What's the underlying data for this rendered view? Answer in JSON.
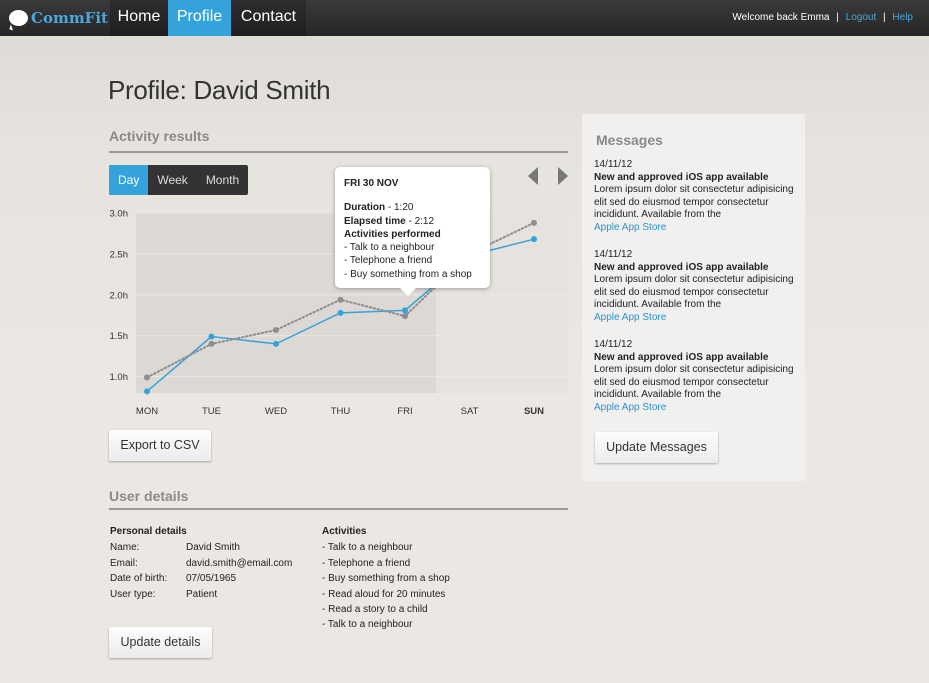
{
  "nav": {
    "logo": "CommFit",
    "tabs": [
      {
        "label": "Home"
      },
      {
        "label": "Profile"
      },
      {
        "label": "Contact"
      }
    ],
    "welcome": "Welcome back Emma",
    "logout": "Logout",
    "help": "Help",
    "separator": "|"
  },
  "page": {
    "title": "Profile: David Smith"
  },
  "activity": {
    "title": "Activity results",
    "segments": [
      "Day",
      "Week",
      "Month"
    ],
    "export_label": "Export to CSV"
  },
  "tooltip": {
    "date": "FRI 30 NOV",
    "duration_label": "Duration",
    "duration_value": " - 1:20",
    "elapsed_label": "Elapsed time",
    "elapsed_value": " - 2:12",
    "activities_label": "Activities performed",
    "activities": [
      "- Talk to a neighbour",
      "- Telephone a friend",
      "- Buy something from a shop"
    ]
  },
  "chart_data": {
    "type": "line",
    "categories": [
      "MON",
      "TUE",
      "WED",
      "THU",
      "FRI",
      "SAT",
      "SUN"
    ],
    "y_ticks": [
      "1.0h",
      "1.5h",
      "2.0h",
      "2.5h",
      "3.0h"
    ],
    "ylim": [
      0.8,
      3.0
    ],
    "grid": true,
    "series": [
      {
        "style": "solid",
        "color": "#34a3dc",
        "values": [
          0.82,
          1.49,
          1.4,
          1.78,
          1.81,
          2.48,
          2.68
        ]
      },
      {
        "style": "dotted",
        "color": "#8e8e8e",
        "values": [
          0.99,
          1.4,
          1.57,
          1.94,
          1.74,
          2.5,
          2.88
        ]
      }
    ],
    "bold_category": "SUN"
  },
  "user": {
    "title": "User details",
    "personal_heading": "Personal details",
    "fields": [
      {
        "label": "Name:",
        "value": "David Smith"
      },
      {
        "label": "Email:",
        "value": "david.smith@email.com"
      },
      {
        "label": "Date of birth:",
        "value": "07/05/1965"
      },
      {
        "label": "User type:",
        "value": "Patient"
      }
    ],
    "activities_heading": "Activities",
    "activities": [
      "- Talk to a neighbour",
      "- Telephone a friend",
      "- Buy something from a shop",
      "- Read aloud for 20 minutes",
      "- Read a story to a child",
      "- Talk to a neighbour"
    ],
    "update_label": "Update details"
  },
  "messages": {
    "title": "Messages",
    "items": [
      {
        "date": "14/11/12",
        "title": "New and approved iOS app available",
        "body": "Lorem ipsum dolor sit consectetur adipisicing elit sed do eiusmod tempor consectetur incididunt. Available from the",
        "link": "Apple App Store"
      },
      {
        "date": "14/11/12",
        "title": "New and approved iOS app available",
        "body": "Lorem ipsum dolor sit consectetur adipisicing elit sed do eiusmod tempor consectetur incididunt. Available from the",
        "link": "Apple App Store"
      },
      {
        "date": "14/11/12",
        "title": "New and approved iOS app available",
        "body": "Lorem ipsum dolor sit consectetur adipisicing elit sed do eiusmod tempor consectetur incididunt. Available from the",
        "link": "Apple App Store"
      }
    ],
    "update_label": "Update Messages"
  }
}
